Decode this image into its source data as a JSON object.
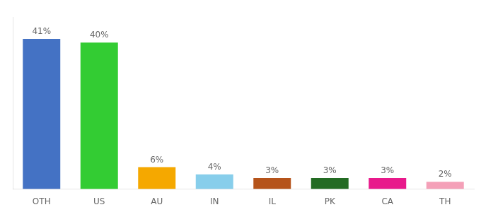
{
  "chart_data": {
    "type": "bar",
    "categories": [
      "OTH",
      "US",
      "AU",
      "IN",
      "IL",
      "PK",
      "CA",
      "TH"
    ],
    "values": [
      41,
      40,
      6,
      4,
      3,
      3,
      3,
      2
    ],
    "value_labels": [
      "41%",
      "40%",
      "6%",
      "4%",
      "3%",
      "3%",
      "3%",
      "2%"
    ],
    "colors": [
      "#4472c4",
      "#33cc33",
      "#f5a800",
      "#87ceeb",
      "#b5531a",
      "#236b23",
      "#e8198b",
      "#f4a0b8"
    ],
    "ylim": [
      0,
      47
    ],
    "data_labels": true,
    "tick_labels": "x",
    "grid": false
  }
}
